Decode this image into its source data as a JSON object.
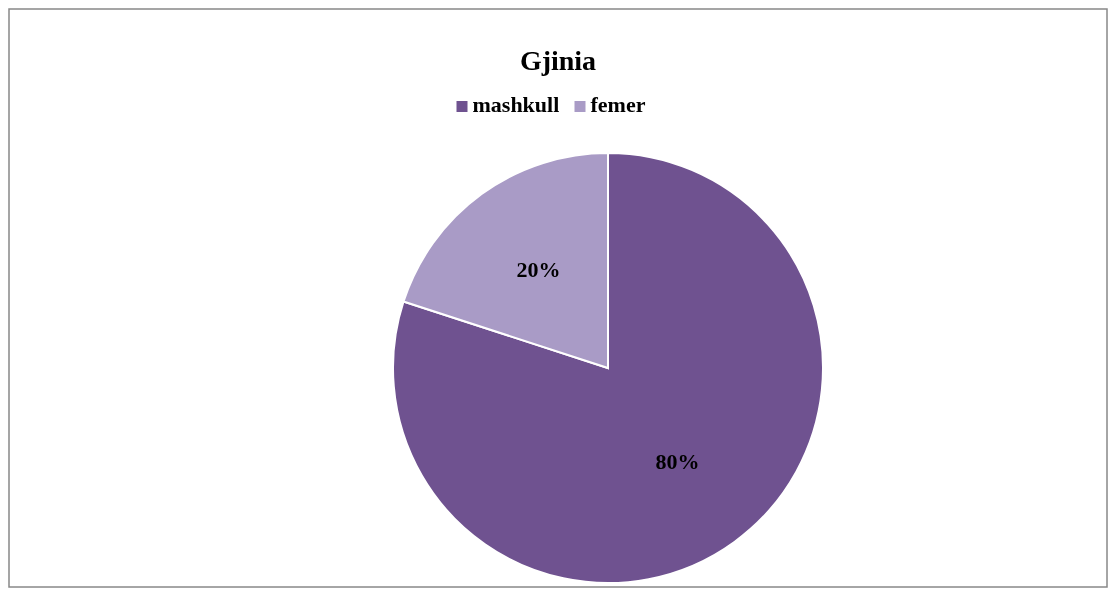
{
  "chart_data": {
    "type": "pie",
    "title": "Gjinia",
    "categories": [
      "mashkull",
      "femer"
    ],
    "values": [
      80,
      20
    ],
    "colors": [
      "#6f5290",
      "#a99bc6"
    ],
    "value_labels": [
      "80%",
      "20%"
    ],
    "legend": "top"
  }
}
